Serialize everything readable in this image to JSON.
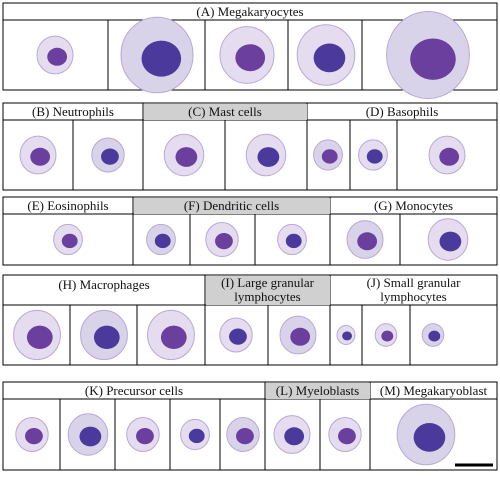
{
  "rows": [
    {
      "panels": [
        {
          "label": "(A) Megakaryocytes"
        }
      ]
    },
    {
      "panels": [
        {
          "label": "(B) Neutrophils"
        },
        {
          "label": "(C) Mast cells"
        },
        {
          "label": "(D) Basophils"
        }
      ]
    },
    {
      "panels": [
        {
          "label": "(E) Eosinophils"
        },
        {
          "label": "(F) Dendritic cells"
        },
        {
          "label": "(G) Monocytes"
        }
      ]
    },
    {
      "panels": [
        {
          "label": "(H) Macrophages"
        },
        {
          "label": "(I) Large granular lymphocytes"
        },
        {
          "label": "(J) Small granular lymphocytes"
        }
      ]
    },
    {
      "panels": [
        {
          "label": "(K) Precursor cells"
        },
        {
          "label": "(L) Myeloblasts"
        },
        {
          "label": "(M) Megakaryoblast"
        }
      ]
    }
  ]
}
